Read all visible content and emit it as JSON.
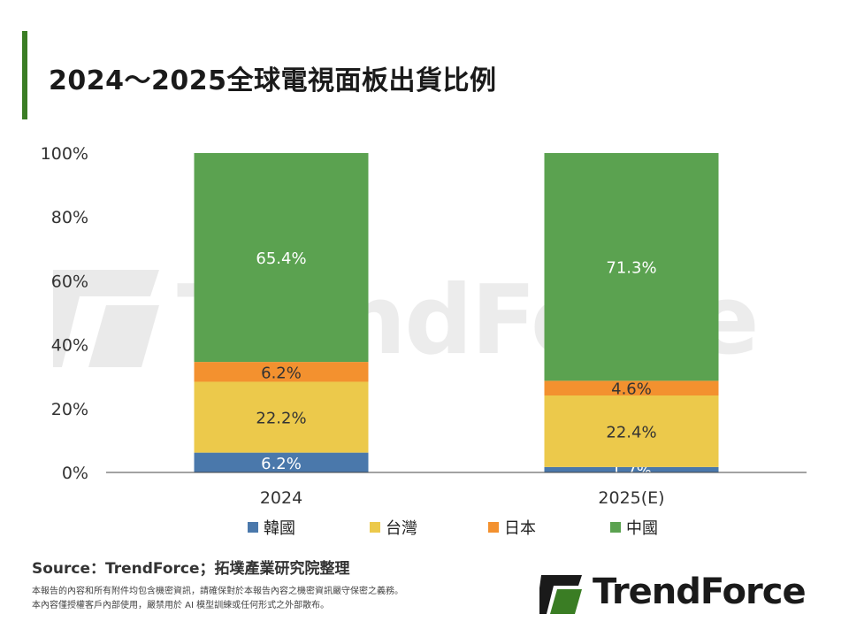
{
  "header": {
    "title": "2024～2025全球電視面板出貨比例"
  },
  "watermark": {
    "text": "TrendForce"
  },
  "chart_data": {
    "type": "bar",
    "stacked": true,
    "categories": [
      "2024",
      "2025(E)"
    ],
    "series": [
      {
        "name": "韓國",
        "values": [
          6.2,
          1.7
        ],
        "labels": [
          "6.2%",
          "1.7%"
        ],
        "color": "#4a78ab"
      },
      {
        "name": "台灣",
        "values": [
          22.2,
          22.4
        ],
        "labels": [
          "22.2%",
          "22.4%"
        ],
        "color": "#ecc94b"
      },
      {
        "name": "日本",
        "values": [
          6.2,
          4.6
        ],
        "labels": [
          "6.2%",
          "4.6%"
        ],
        "color": "#f3912f"
      },
      {
        "name": "中國",
        "values": [
          65.4,
          71.3
        ],
        "labels": [
          "65.4%",
          "71.3%"
        ],
        "color": "#5ba250"
      }
    ],
    "y_ticks": [
      "0%",
      "20%",
      "40%",
      "60%",
      "80%",
      "100%"
    ],
    "ylim": [
      0,
      100
    ],
    "grid": false,
    "legend_position": "bottom"
  },
  "footer": {
    "source": "Source：TrendForce；拓墣產業研究院整理",
    "disclaimer_1": "本報告的內容和所有附件均包含機密資訊，請確保對於本報告內容之機密資訊嚴守保密之義務。",
    "disclaimer_2": "本內容僅授權客戶內部使用，嚴禁用於 AI 模型訓練或任何形式之外部散布。",
    "logo_text": "TrendForce"
  },
  "colors": {
    "accent": "#3a7d24"
  }
}
